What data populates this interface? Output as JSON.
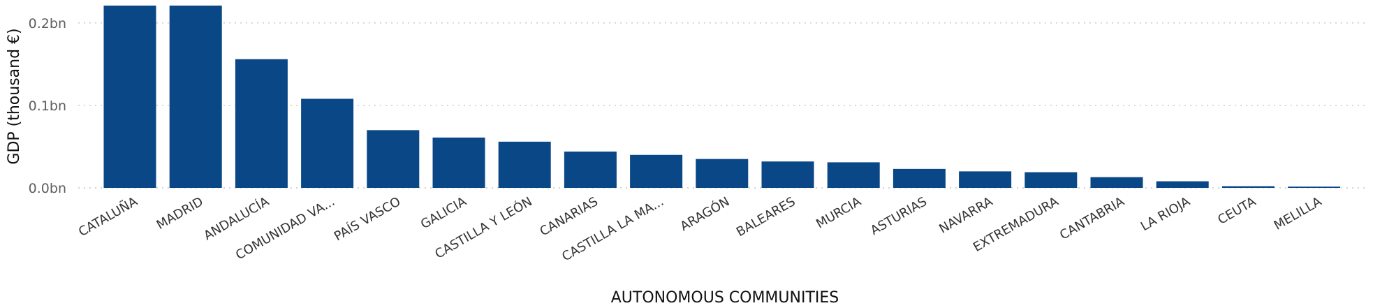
{
  "chart_data": {
    "type": "bar",
    "categories": [
      "CATALUÑA",
      "MADRID",
      "ANDALUCÍA",
      "COMUNIDAD VA...",
      "PAÍS VASCO",
      "GALICIA",
      "CASTILLA Y LEÓN",
      "CANARIAS",
      "CASTILLA LA MA...",
      "ARAGÓN",
      "BALEARES",
      "MURCIA",
      "ASTURIAS",
      "NAVARRA",
      "EXTREMADURA",
      "CANTABRIA",
      "LA RIOJA",
      "CEUTA",
      "MELILLA"
    ],
    "values": [
      0.221,
      0.221,
      0.156,
      0.108,
      0.07,
      0.061,
      0.056,
      0.044,
      0.04,
      0.035,
      0.032,
      0.031,
      0.023,
      0.02,
      0.019,
      0.013,
      0.008,
      0.002,
      0.0015
    ],
    "xlabel": "AUTONOMOUS COMMUNITIES",
    "ylabel": "GDP (thousand €)",
    "ylim": [
      0,
      0.221
    ],
    "yticks": [
      0,
      0.1,
      0.2
    ],
    "ytick_labels": [
      "0.0bn",
      "0.1bn",
      "0.2bn"
    ],
    "grid": true,
    "bar_color": "#0A4786"
  }
}
